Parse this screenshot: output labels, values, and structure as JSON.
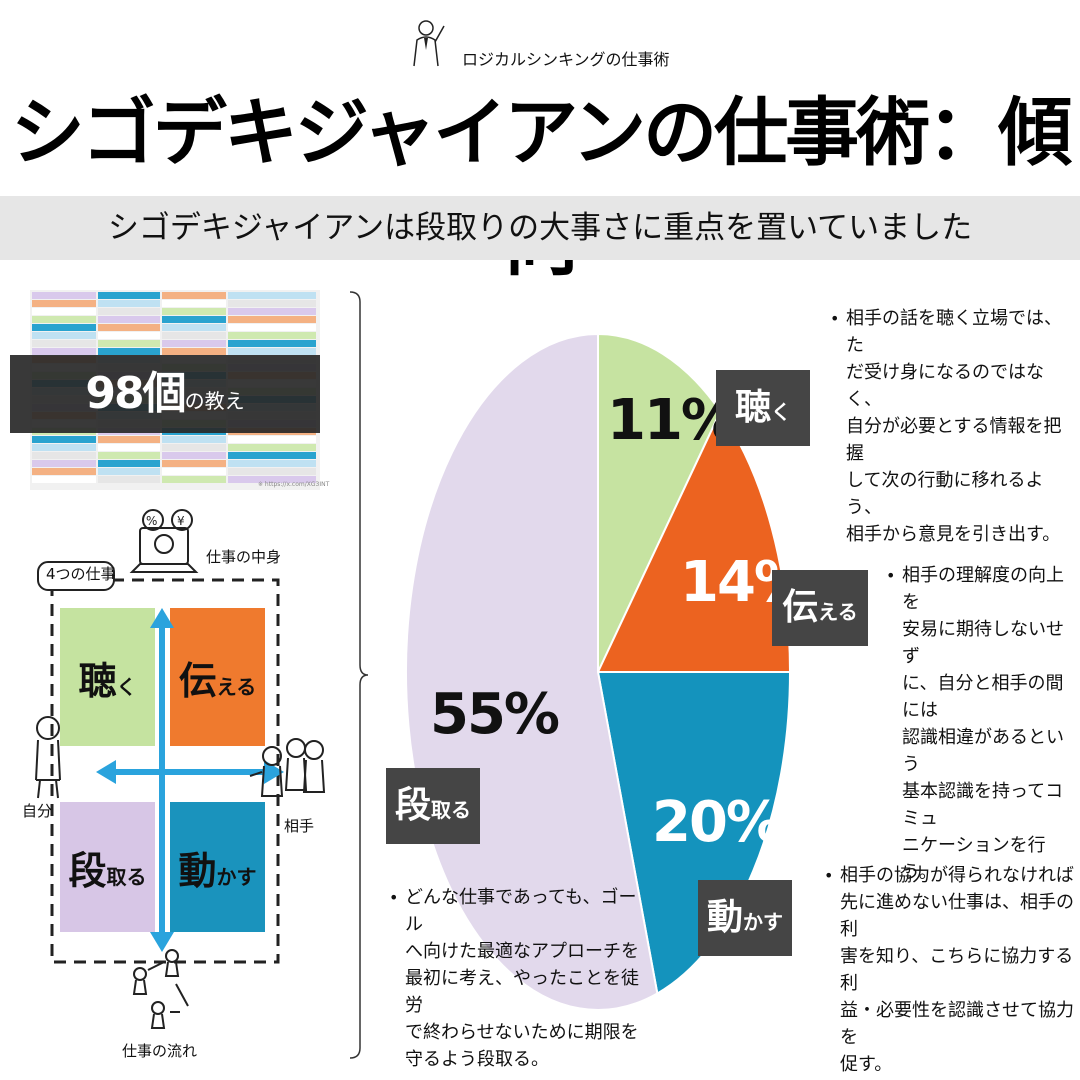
{
  "header": {
    "brand": "ロジカルシンキングの仕事術",
    "title": "シゴデキジャイアンの仕事術：傾向",
    "subtitle": "シゴデキジャイアンは段取りの大事さに重点を置いていました"
  },
  "summary": {
    "count": "98個",
    "count_suffix": "の教え",
    "source": "※ https://x.com/XG3INT"
  },
  "framework": {
    "group_label": "4つの仕事",
    "content_label": "仕事の中身",
    "self_label": "自分",
    "other_label": "相手",
    "flow_label": "仕事の流れ",
    "money_icons": [
      "%",
      "¥"
    ],
    "quadrants": [
      {
        "big": "聴",
        "small": "く",
        "color": "#c5e3a0"
      },
      {
        "big": "伝",
        "small": "える",
        "color": "#ef7a2e"
      },
      {
        "big": "段",
        "small": "取る",
        "color": "#d7c6e6"
      },
      {
        "big": "動",
        "small": "かす",
        "color": "#1a93bd"
      }
    ]
  },
  "chart_data": {
    "type": "pie",
    "slices": [
      {
        "label_big": "聴",
        "label_small": "く",
        "value": 11,
        "pct_label": "11%",
        "color": "#c6e3a1",
        "desc": [
          "相手の話を聴く立場では、た",
          "だ受け身になるのではなく、",
          "自分が必要とする情報を把握",
          "して次の行動に移れるよう、",
          "相手から意見を引き出す。"
        ]
      },
      {
        "label_big": "伝",
        "label_small": "える",
        "value": 14,
        "pct_label": "14%",
        "color": "#ec6320",
        "desc": [
          "相手の理解度の向上を",
          "安易に期待しないせず",
          "に、自分と相手の間には",
          "認識相違があるという",
          "基本認識を持ってコミュ",
          "ニケーションを行う。"
        ]
      },
      {
        "label_big": "動",
        "label_small": "かす",
        "value": 20,
        "pct_label": "20%",
        "color": "#1493bd",
        "desc": [
          "相手の協力が得られなければ",
          "先に進めない仕事は、相手の利",
          "害を知り、こちらに協力する利",
          "益・必要性を認識させて協力を",
          "促す。"
        ]
      },
      {
        "label_big": "段",
        "label_small": "取る",
        "value": 55,
        "pct_label": "55%",
        "color": "#e2d9ec",
        "desc": [
          "どんな仕事であっても、ゴール",
          "へ向けた最適なアプローチを",
          "最初に考え、やったことを徒労",
          "で終わらせないために期限を",
          "守るよう段取る。"
        ]
      }
    ]
  }
}
